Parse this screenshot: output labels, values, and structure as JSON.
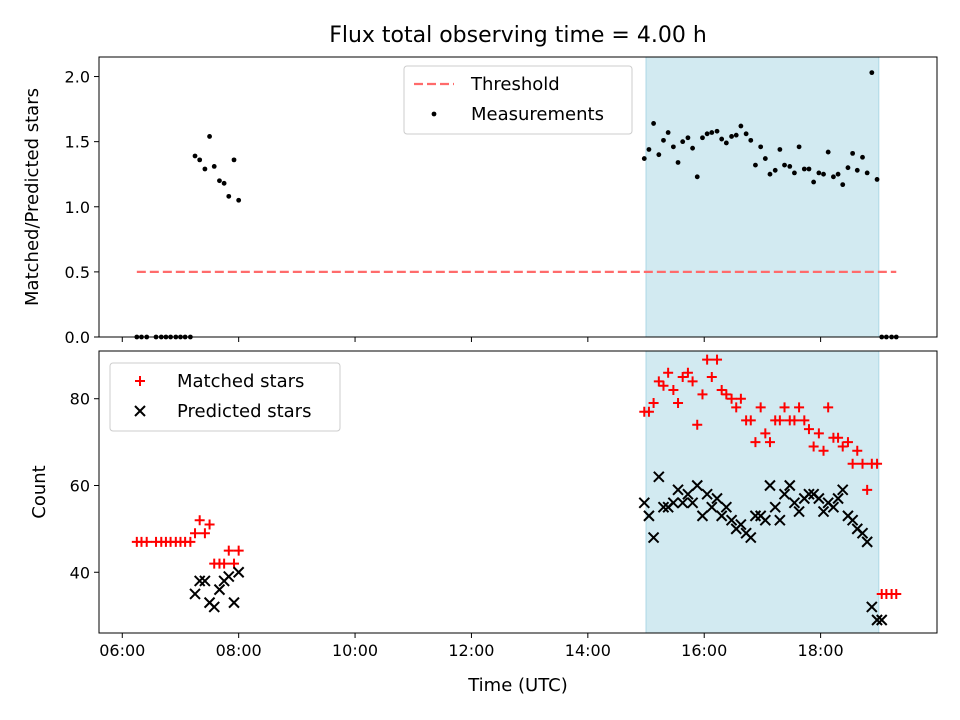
{
  "chart_data": {
    "title": "Flux total observing time = 4.00 h",
    "xlabel": "Time (UTC)",
    "x_unit": "hours (UTC)",
    "xlim": [
      5.6,
      20.0
    ],
    "xticks": [
      {
        "v": 6,
        "label": "06:00"
      },
      {
        "v": 8,
        "label": "08:00"
      },
      {
        "v": 10,
        "label": "10:00"
      },
      {
        "v": 12,
        "label": "12:00"
      },
      {
        "v": 14,
        "label": "14:00"
      },
      {
        "v": 16,
        "label": "16:00"
      },
      {
        "v": 18,
        "label": "18:00"
      }
    ],
    "observing_window": {
      "start": 15.0,
      "end": 19.0,
      "color": "#add8e6"
    },
    "panels": [
      {
        "type": "scatter",
        "ylabel": "Matched/Predicted stars",
        "ylim": [
          0,
          2.15
        ],
        "yticks": [
          {
            "v": 0.0,
            "label": "0.0"
          },
          {
            "v": 0.5,
            "label": "0.5"
          },
          {
            "v": 1.0,
            "label": "1.0"
          },
          {
            "v": 1.5,
            "label": "1.5"
          },
          {
            "v": 2.0,
            "label": "2.0"
          }
        ],
        "threshold": {
          "name": "Threshold",
          "value": 0.5,
          "x_range": [
            6.25,
            19.3
          ],
          "color": "#ff6b6b"
        },
        "legend_position": "upper center",
        "series": [
          {
            "name": "Measurements",
            "marker": "dot",
            "color": "#000000",
            "x": [
              6.25,
              6.33,
              6.42,
              6.58,
              6.67,
              6.75,
              6.83,
              6.92,
              7.0,
              7.08,
              7.17,
              7.25,
              7.33,
              7.42,
              7.5,
              7.58,
              7.67,
              7.75,
              7.83,
              7.92,
              8.0,
              14.97,
              15.05,
              15.13,
              15.22,
              15.3,
              15.38,
              15.47,
              15.55,
              15.63,
              15.72,
              15.8,
              15.88,
              15.97,
              16.05,
              16.13,
              16.22,
              16.3,
              16.38,
              16.47,
              16.55,
              16.63,
              16.72,
              16.8,
              16.88,
              16.97,
              17.05,
              17.13,
              17.22,
              17.3,
              17.38,
              17.47,
              17.55,
              17.63,
              17.72,
              17.8,
              17.88,
              17.97,
              18.05,
              18.13,
              18.22,
              18.3,
              18.38,
              18.47,
              18.55,
              18.63,
              18.72,
              18.8,
              18.88,
              18.97,
              19.05,
              19.13,
              19.22,
              19.3
            ],
            "y": [
              0,
              0,
              0,
              0,
              0,
              0,
              0,
              0,
              0,
              0,
              0,
              1.39,
              1.36,
              1.29,
              1.54,
              1.31,
              1.2,
              1.18,
              1.08,
              1.36,
              1.05,
              1.37,
              1.44,
              1.64,
              1.4,
              1.51,
              1.57,
              1.46,
              1.34,
              1.5,
              1.53,
              1.45,
              1.23,
              1.53,
              1.56,
              1.57,
              1.58,
              1.52,
              1.49,
              1.54,
              1.55,
              1.62,
              1.56,
              1.51,
              1.32,
              1.46,
              1.37,
              1.25,
              1.28,
              1.44,
              1.32,
              1.31,
              1.26,
              1.46,
              1.29,
              1.29,
              1.19,
              1.26,
              1.25,
              1.42,
              1.23,
              1.25,
              1.17,
              1.3,
              1.41,
              1.28,
              1.38,
              1.26,
              2.03,
              1.21,
              0,
              0,
              0,
              0
            ]
          }
        ]
      },
      {
        "type": "scatter",
        "ylabel": "Count",
        "ylim": [
          26,
          91
        ],
        "yticks": [
          {
            "v": 40,
            "label": "40"
          },
          {
            "v": 60,
            "label": "60"
          },
          {
            "v": 80,
            "label": "80"
          }
        ],
        "legend_position": "upper left",
        "series": [
          {
            "name": "Matched stars",
            "marker": "plus",
            "color": "#ff0000",
            "x": [
              6.25,
              6.33,
              6.42,
              6.58,
              6.67,
              6.75,
              6.83,
              6.92,
              7.0,
              7.08,
              7.17,
              7.25,
              7.33,
              7.42,
              7.5,
              7.58,
              7.67,
              7.75,
              7.83,
              7.92,
              8.0,
              14.97,
              15.05,
              15.13,
              15.22,
              15.3,
              15.38,
              15.47,
              15.55,
              15.63,
              15.72,
              15.8,
              15.88,
              15.97,
              16.05,
              16.13,
              16.22,
              16.3,
              16.38,
              16.47,
              16.55,
              16.63,
              16.72,
              16.8,
              16.88,
              16.97,
              17.05,
              17.13,
              17.22,
              17.3,
              17.38,
              17.47,
              17.55,
              17.63,
              17.72,
              17.8,
              17.88,
              17.97,
              18.05,
              18.13,
              18.22,
              18.3,
              18.38,
              18.47,
              18.55,
              18.63,
              18.72,
              18.8,
              18.88,
              18.97,
              19.05,
              19.13,
              19.22,
              19.3
            ],
            "y": [
              47,
              47,
              47,
              47,
              47,
              47,
              47,
              47,
              47,
              47,
              47,
              49,
              52,
              49,
              51,
              42,
              42,
              42,
              45,
              42,
              45,
              77,
              77,
              79,
              84,
              83,
              86,
              82,
              79,
              85,
              86,
              84,
              74,
              81,
              89,
              85,
              89,
              82,
              81,
              80,
              78,
              80,
              75,
              75,
              70,
              78,
              72,
              70,
              75,
              75,
              78,
              75,
              75,
              78,
              75,
              73,
              69,
              72,
              68,
              78,
              71,
              71,
              69,
              70,
              65,
              68,
              65,
              59,
              65,
              65,
              35,
              35,
              35,
              35
            ]
          },
          {
            "name": "Predicted stars",
            "marker": "x",
            "color": "#000000",
            "x": [
              7.25,
              7.33,
              7.42,
              7.5,
              7.58,
              7.67,
              7.75,
              7.83,
              7.92,
              8.0,
              14.97,
              15.05,
              15.13,
              15.22,
              15.3,
              15.38,
              15.47,
              15.55,
              15.63,
              15.72,
              15.8,
              15.88,
              15.97,
              16.05,
              16.13,
              16.22,
              16.3,
              16.38,
              16.47,
              16.55,
              16.63,
              16.72,
              16.8,
              16.88,
              16.97,
              17.05,
              17.13,
              17.22,
              17.3,
              17.38,
              17.47,
              17.55,
              17.63,
              17.72,
              17.8,
              17.88,
              17.97,
              18.05,
              18.13,
              18.22,
              18.3,
              18.38,
              18.47,
              18.55,
              18.63,
              18.72,
              18.8,
              18.88,
              18.97,
              19.05
            ],
            "y": [
              35,
              38,
              38,
              33,
              32,
              36,
              38,
              39,
              33,
              40,
              56,
              53,
              48,
              62,
              55,
              55,
              56,
              59,
              56,
              58,
              56,
              60,
              53,
              58,
              55,
              57,
              53,
              55,
              52,
              50,
              51,
              49,
              48,
              53,
              53,
              52,
              60,
              55,
              52,
              58,
              60,
              56,
              54,
              57,
              58,
              58,
              57,
              54,
              56,
              55,
              57,
              59,
              53,
              52,
              50,
              49,
              47,
              32,
              29,
              29
            ]
          }
        ]
      }
    ]
  }
}
